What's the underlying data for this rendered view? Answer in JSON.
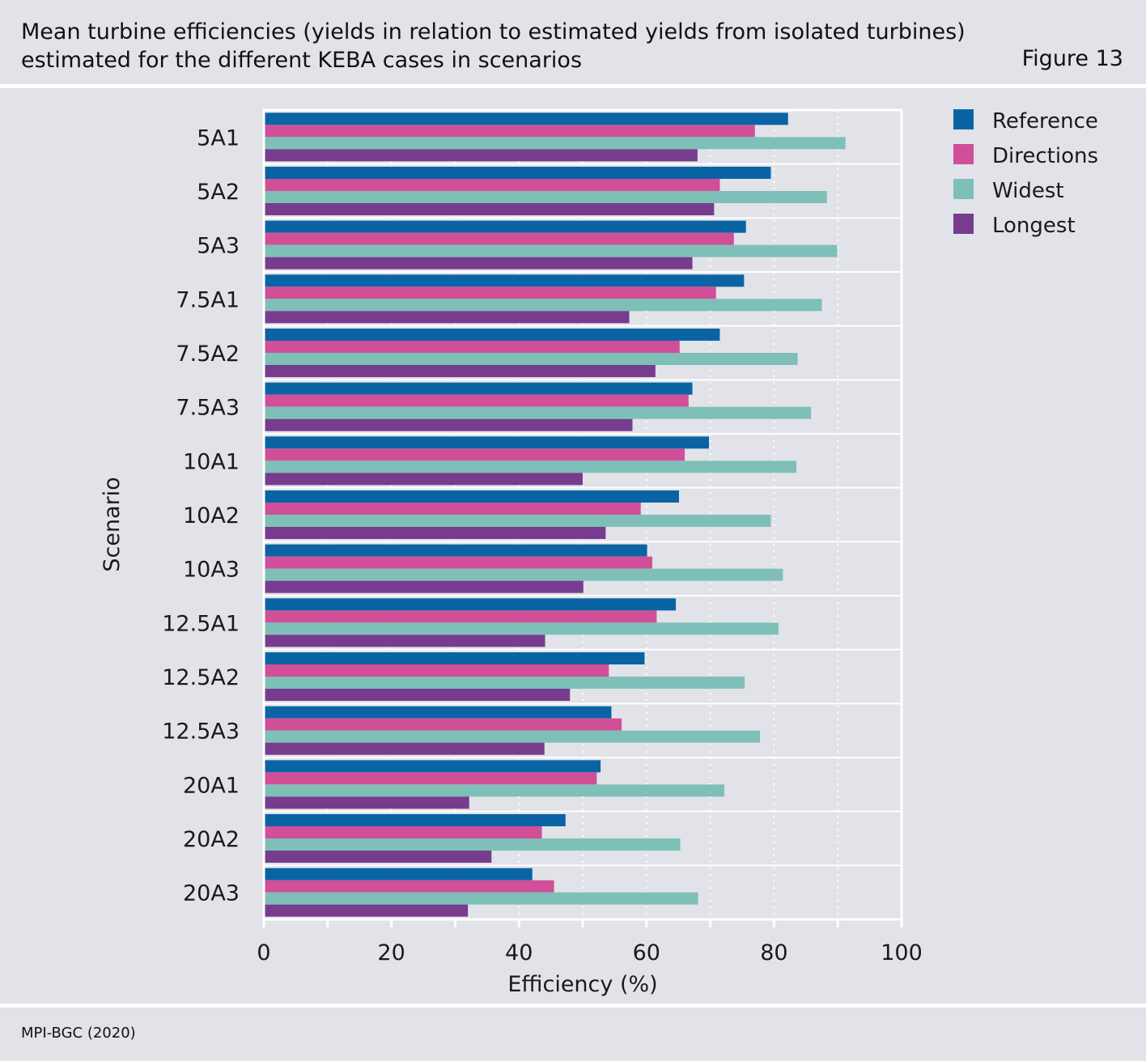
{
  "header": {
    "title_line1": "Mean turbine efficiencies (yields in relation to estimated yields from isolated turbines)",
    "title_line2": "estimated for the different KEBA cases in scenarios",
    "figure_label": "Figure 13"
  },
  "footer": {
    "source": "MPI-BGC (2020)"
  },
  "chart_data": {
    "type": "bar",
    "orientation": "horizontal",
    "xlabel": "Efficiency (%)",
    "ylabel": "Scenario",
    "xlim": [
      0,
      100
    ],
    "xticks": [
      0,
      20,
      40,
      60,
      80,
      100
    ],
    "grid": "dotted vertical",
    "legend_position": "top-right",
    "categories": [
      "5A1",
      "5A2",
      "5A3",
      "7.5A1",
      "7.5A2",
      "7.5A3",
      "10A1",
      "10A2",
      "10A3",
      "12.5A1",
      "12.5A2",
      "12.5A3",
      "20A1",
      "20A2",
      "20A3"
    ],
    "series": [
      {
        "name": "Reference",
        "color": "#0a64a4",
        "values": [
          82.2,
          79.5,
          75.6,
          75.3,
          71.5,
          67.2,
          69.8,
          65.1,
          60.1,
          64.6,
          59.7,
          54.5,
          52.8,
          47.3,
          42.1
        ]
      },
      {
        "name": "Directions",
        "color": "#d04f98",
        "values": [
          77.0,
          71.5,
          73.7,
          70.9,
          65.2,
          66.6,
          66.0,
          59.1,
          60.9,
          61.6,
          54.1,
          56.1,
          52.2,
          43.6,
          45.5
        ]
      },
      {
        "name": "Widest",
        "color": "#7ec0b8",
        "values": [
          91.2,
          88.3,
          89.9,
          87.5,
          83.7,
          85.8,
          83.5,
          79.5,
          81.4,
          80.7,
          75.4,
          77.8,
          72.2,
          65.3,
          68.1
        ]
      },
      {
        "name": "Longest",
        "color": "#773c8e",
        "values": [
          68.0,
          70.6,
          67.2,
          57.3,
          61.4,
          57.8,
          50.0,
          53.6,
          50.1,
          44.1,
          48.0,
          44.0,
          32.2,
          35.7,
          32.0
        ]
      }
    ]
  }
}
